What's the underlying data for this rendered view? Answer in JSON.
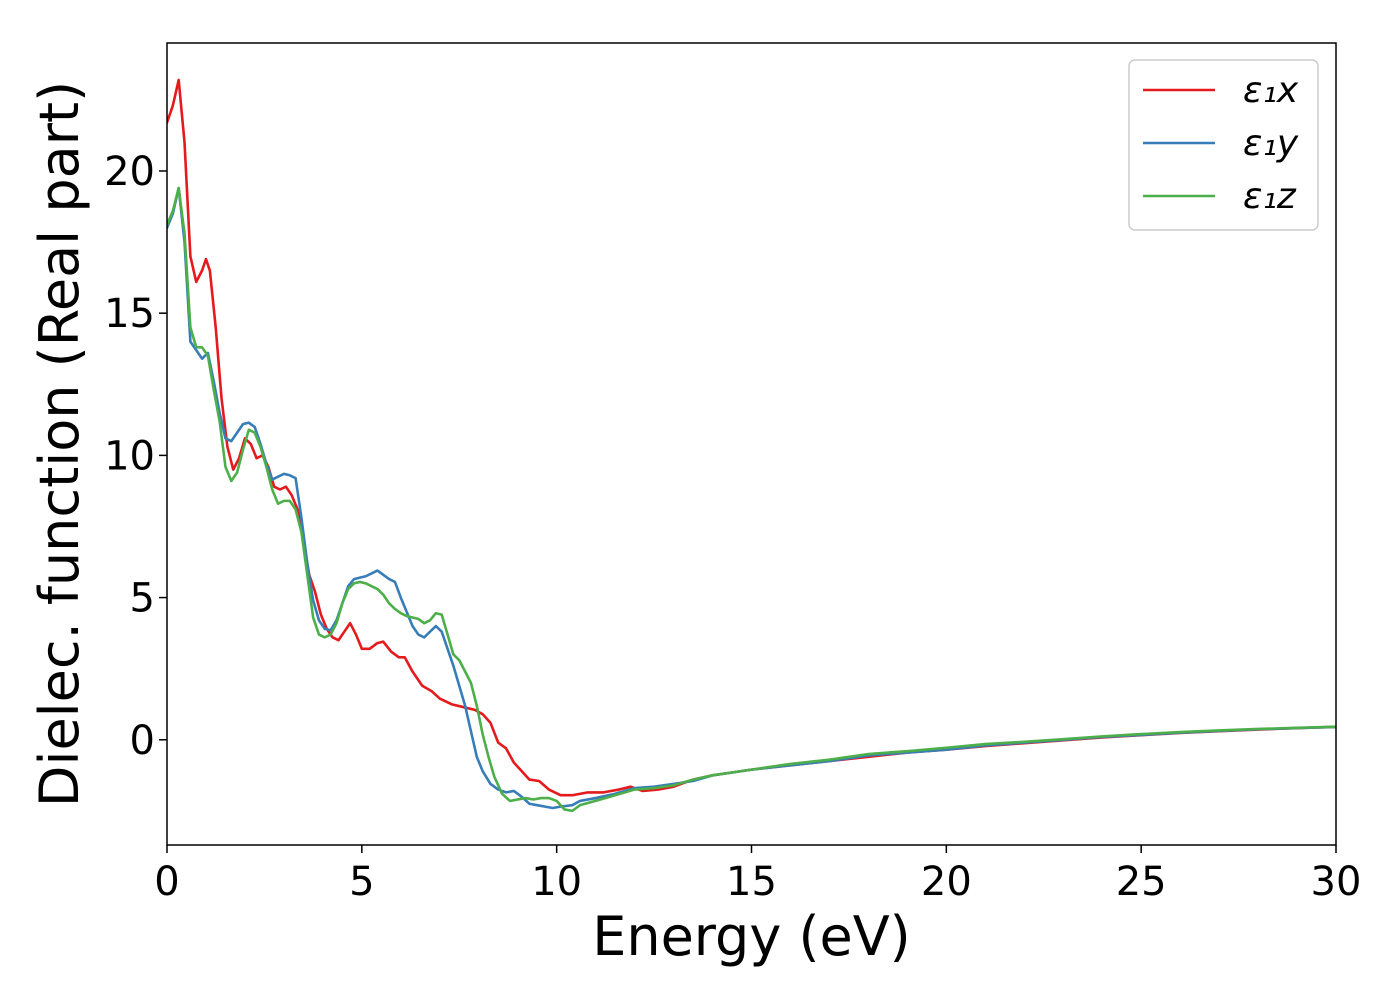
{
  "chart_data": {
    "type": "line",
    "xlabel": "Energy (eV)",
    "ylabel": "Dielec. function (Real part)",
    "xlim": [
      0,
      30
    ],
    "ylim": [
      -3.7,
      24.5
    ],
    "xticks": [
      0,
      5,
      10,
      15,
      20,
      25,
      30
    ],
    "yticks": [
      0,
      5,
      10,
      15,
      20
    ],
    "grid": false,
    "legend_position": "top-right",
    "series": [
      {
        "name": "ε₁x",
        "color": "#e41a1c",
        "points": [
          [
            0,
            21.7
          ],
          [
            0.15,
            22.3
          ],
          [
            0.3,
            23.2
          ],
          [
            0.45,
            21.0
          ],
          [
            0.6,
            17.0
          ],
          [
            0.75,
            16.1
          ],
          [
            0.9,
            16.5
          ],
          [
            1.0,
            16.9
          ],
          [
            1.1,
            16.5
          ],
          [
            1.25,
            14.5
          ],
          [
            1.4,
            12.0
          ],
          [
            1.55,
            10.3
          ],
          [
            1.7,
            9.5
          ],
          [
            1.85,
            9.9
          ],
          [
            2.0,
            10.6
          ],
          [
            2.15,
            10.4
          ],
          [
            2.3,
            9.9
          ],
          [
            2.45,
            10.0
          ],
          [
            2.6,
            9.6
          ],
          [
            2.75,
            8.9
          ],
          [
            2.9,
            8.8
          ],
          [
            3.05,
            8.9
          ],
          [
            3.2,
            8.6
          ],
          [
            3.35,
            8.1
          ],
          [
            3.5,
            7.0
          ],
          [
            3.65,
            5.8
          ],
          [
            3.8,
            5.2
          ],
          [
            3.95,
            4.4
          ],
          [
            4.1,
            3.9
          ],
          [
            4.25,
            3.6
          ],
          [
            4.4,
            3.5
          ],
          [
            4.55,
            3.8
          ],
          [
            4.7,
            4.1
          ],
          [
            4.85,
            3.7
          ],
          [
            5.0,
            3.2
          ],
          [
            5.2,
            3.2
          ],
          [
            5.4,
            3.4
          ],
          [
            5.55,
            3.45
          ],
          [
            5.75,
            3.1
          ],
          [
            5.95,
            2.9
          ],
          [
            6.1,
            2.9
          ],
          [
            6.3,
            2.4
          ],
          [
            6.55,
            1.9
          ],
          [
            6.8,
            1.7
          ],
          [
            7.0,
            1.45
          ],
          [
            7.3,
            1.25
          ],
          [
            7.6,
            1.15
          ],
          [
            7.9,
            1.05
          ],
          [
            8.1,
            0.9
          ],
          [
            8.3,
            0.6
          ],
          [
            8.5,
            -0.1
          ],
          [
            8.7,
            -0.3
          ],
          [
            8.9,
            -0.8
          ],
          [
            9.1,
            -1.1
          ],
          [
            9.3,
            -1.4
          ],
          [
            9.55,
            -1.45
          ],
          [
            9.8,
            -1.75
          ],
          [
            10.1,
            -1.95
          ],
          [
            10.4,
            -1.95
          ],
          [
            10.8,
            -1.85
          ],
          [
            11.2,
            -1.85
          ],
          [
            11.6,
            -1.75
          ],
          [
            11.9,
            -1.65
          ],
          [
            12.2,
            -1.8
          ],
          [
            12.6,
            -1.75
          ],
          [
            13.0,
            -1.65
          ],
          [
            13.5,
            -1.4
          ],
          [
            14.0,
            -1.25
          ],
          [
            14.5,
            -1.15
          ],
          [
            15.0,
            -1.05
          ],
          [
            16.0,
            -0.9
          ],
          [
            17.0,
            -0.75
          ],
          [
            18.0,
            -0.6
          ],
          [
            19.0,
            -0.45
          ],
          [
            20.0,
            -0.35
          ],
          [
            21.0,
            -0.22
          ],
          [
            22.0,
            -0.12
          ],
          [
            23.0,
            -0.02
          ],
          [
            24.0,
            0.08
          ],
          [
            25.0,
            0.16
          ],
          [
            26.0,
            0.24
          ],
          [
            27.0,
            0.3
          ],
          [
            28.0,
            0.36
          ],
          [
            29.0,
            0.41
          ],
          [
            30.0,
            0.45
          ]
        ]
      },
      {
        "name": "ε₁y",
        "color": "#377eb8",
        "points": [
          [
            0,
            18.0
          ],
          [
            0.15,
            18.5
          ],
          [
            0.3,
            19.4
          ],
          [
            0.45,
            17.5
          ],
          [
            0.6,
            14.0
          ],
          [
            0.75,
            13.7
          ],
          [
            0.9,
            13.4
          ],
          [
            1.05,
            13.6
          ],
          [
            1.2,
            12.6
          ],
          [
            1.35,
            11.5
          ],
          [
            1.5,
            10.6
          ],
          [
            1.65,
            10.5
          ],
          [
            1.8,
            10.8
          ],
          [
            1.95,
            11.1
          ],
          [
            2.1,
            11.15
          ],
          [
            2.25,
            11.0
          ],
          [
            2.4,
            10.4
          ],
          [
            2.55,
            9.7
          ],
          [
            2.7,
            9.15
          ],
          [
            2.85,
            9.25
          ],
          [
            3.0,
            9.35
          ],
          [
            3.15,
            9.3
          ],
          [
            3.3,
            9.2
          ],
          [
            3.45,
            7.8
          ],
          [
            3.6,
            6.2
          ],
          [
            3.75,
            4.9
          ],
          [
            3.9,
            4.2
          ],
          [
            4.05,
            3.9
          ],
          [
            4.2,
            3.85
          ],
          [
            4.35,
            4.2
          ],
          [
            4.5,
            4.8
          ],
          [
            4.65,
            5.4
          ],
          [
            4.8,
            5.65
          ],
          [
            4.95,
            5.7
          ],
          [
            5.1,
            5.75
          ],
          [
            5.25,
            5.85
          ],
          [
            5.4,
            5.95
          ],
          [
            5.55,
            5.8
          ],
          [
            5.7,
            5.65
          ],
          [
            5.85,
            5.55
          ],
          [
            6.0,
            5.0
          ],
          [
            6.15,
            4.5
          ],
          [
            6.3,
            4.0
          ],
          [
            6.45,
            3.7
          ],
          [
            6.6,
            3.6
          ],
          [
            6.75,
            3.8
          ],
          [
            6.9,
            4.0
          ],
          [
            7.05,
            3.8
          ],
          [
            7.2,
            3.2
          ],
          [
            7.35,
            2.6
          ],
          [
            7.5,
            1.9
          ],
          [
            7.65,
            1.2
          ],
          [
            7.8,
            0.3
          ],
          [
            7.95,
            -0.6
          ],
          [
            8.1,
            -1.1
          ],
          [
            8.3,
            -1.55
          ],
          [
            8.5,
            -1.75
          ],
          [
            8.7,
            -1.85
          ],
          [
            8.9,
            -1.8
          ],
          [
            9.1,
            -2.0
          ],
          [
            9.3,
            -2.25
          ],
          [
            9.5,
            -2.3
          ],
          [
            9.7,
            -2.35
          ],
          [
            9.9,
            -2.4
          ],
          [
            10.1,
            -2.35
          ],
          [
            10.4,
            -2.3
          ],
          [
            10.6,
            -2.15
          ],
          [
            11.0,
            -2.05
          ],
          [
            11.5,
            -1.9
          ],
          [
            12.0,
            -1.7
          ],
          [
            12.5,
            -1.65
          ],
          [
            13.0,
            -1.55
          ],
          [
            13.5,
            -1.45
          ],
          [
            14.0,
            -1.25
          ],
          [
            14.5,
            -1.15
          ],
          [
            15.0,
            -1.05
          ],
          [
            16.0,
            -0.9
          ],
          [
            17.0,
            -0.75
          ],
          [
            18.0,
            -0.55
          ],
          [
            19.0,
            -0.45
          ],
          [
            20.0,
            -0.35
          ],
          [
            21.0,
            -0.2
          ],
          [
            22.0,
            -0.1
          ],
          [
            23.0,
            0.0
          ],
          [
            24.0,
            0.1
          ],
          [
            25.0,
            0.17
          ],
          [
            26.0,
            0.25
          ],
          [
            27.0,
            0.31
          ],
          [
            28.0,
            0.37
          ],
          [
            29.0,
            0.41
          ],
          [
            30.0,
            0.45
          ]
        ]
      },
      {
        "name": "ε₁z",
        "color": "#4daf4a",
        "points": [
          [
            0,
            18.1
          ],
          [
            0.15,
            18.6
          ],
          [
            0.3,
            19.4
          ],
          [
            0.45,
            17.8
          ],
          [
            0.6,
            14.5
          ],
          [
            0.75,
            13.8
          ],
          [
            0.9,
            13.8
          ],
          [
            1.05,
            13.5
          ],
          [
            1.2,
            12.3
          ],
          [
            1.35,
            11.2
          ],
          [
            1.5,
            9.6
          ],
          [
            1.65,
            9.1
          ],
          [
            1.8,
            9.4
          ],
          [
            1.95,
            10.2
          ],
          [
            2.1,
            10.9
          ],
          [
            2.25,
            10.8
          ],
          [
            2.4,
            10.3
          ],
          [
            2.55,
            9.6
          ],
          [
            2.7,
            8.8
          ],
          [
            2.85,
            8.3
          ],
          [
            3.0,
            8.4
          ],
          [
            3.15,
            8.4
          ],
          [
            3.3,
            8.1
          ],
          [
            3.45,
            7.3
          ],
          [
            3.6,
            5.8
          ],
          [
            3.75,
            4.3
          ],
          [
            3.9,
            3.7
          ],
          [
            4.05,
            3.6
          ],
          [
            4.2,
            3.7
          ],
          [
            4.35,
            4.1
          ],
          [
            4.5,
            4.8
          ],
          [
            4.65,
            5.3
          ],
          [
            4.8,
            5.5
          ],
          [
            4.95,
            5.55
          ],
          [
            5.1,
            5.5
          ],
          [
            5.25,
            5.4
          ],
          [
            5.4,
            5.3
          ],
          [
            5.55,
            5.1
          ],
          [
            5.7,
            4.8
          ],
          [
            5.85,
            4.6
          ],
          [
            6.0,
            4.45
          ],
          [
            6.15,
            4.35
          ],
          [
            6.3,
            4.3
          ],
          [
            6.45,
            4.25
          ],
          [
            6.6,
            4.1
          ],
          [
            6.75,
            4.2
          ],
          [
            6.9,
            4.45
          ],
          [
            7.05,
            4.4
          ],
          [
            7.2,
            3.7
          ],
          [
            7.35,
            3.0
          ],
          [
            7.5,
            2.8
          ],
          [
            7.65,
            2.4
          ],
          [
            7.8,
            2.0
          ],
          [
            7.95,
            1.2
          ],
          [
            8.1,
            0.2
          ],
          [
            8.25,
            -0.6
          ],
          [
            8.4,
            -1.3
          ],
          [
            8.6,
            -1.9
          ],
          [
            8.8,
            -2.15
          ],
          [
            9.0,
            -2.1
          ],
          [
            9.2,
            -2.05
          ],
          [
            9.4,
            -2.1
          ],
          [
            9.6,
            -2.05
          ],
          [
            9.8,
            -2.05
          ],
          [
            10.0,
            -2.15
          ],
          [
            10.2,
            -2.45
          ],
          [
            10.4,
            -2.5
          ],
          [
            10.6,
            -2.3
          ],
          [
            11.0,
            -2.15
          ],
          [
            11.5,
            -1.95
          ],
          [
            12.0,
            -1.75
          ],
          [
            12.5,
            -1.7
          ],
          [
            13.0,
            -1.6
          ],
          [
            13.5,
            -1.4
          ],
          [
            14.0,
            -1.25
          ],
          [
            14.5,
            -1.15
          ],
          [
            15.0,
            -1.05
          ],
          [
            16.0,
            -0.85
          ],
          [
            17.0,
            -0.7
          ],
          [
            18.0,
            -0.5
          ],
          [
            19.0,
            -0.4
          ],
          [
            20.0,
            -0.28
          ],
          [
            21.0,
            -0.15
          ],
          [
            22.0,
            -0.07
          ],
          [
            23.0,
            0.02
          ],
          [
            24.0,
            0.12
          ],
          [
            25.0,
            0.2
          ],
          [
            26.0,
            0.27
          ],
          [
            27.0,
            0.33
          ],
          [
            28.0,
            0.38
          ],
          [
            29.0,
            0.42
          ],
          [
            30.0,
            0.46
          ]
        ]
      }
    ]
  }
}
